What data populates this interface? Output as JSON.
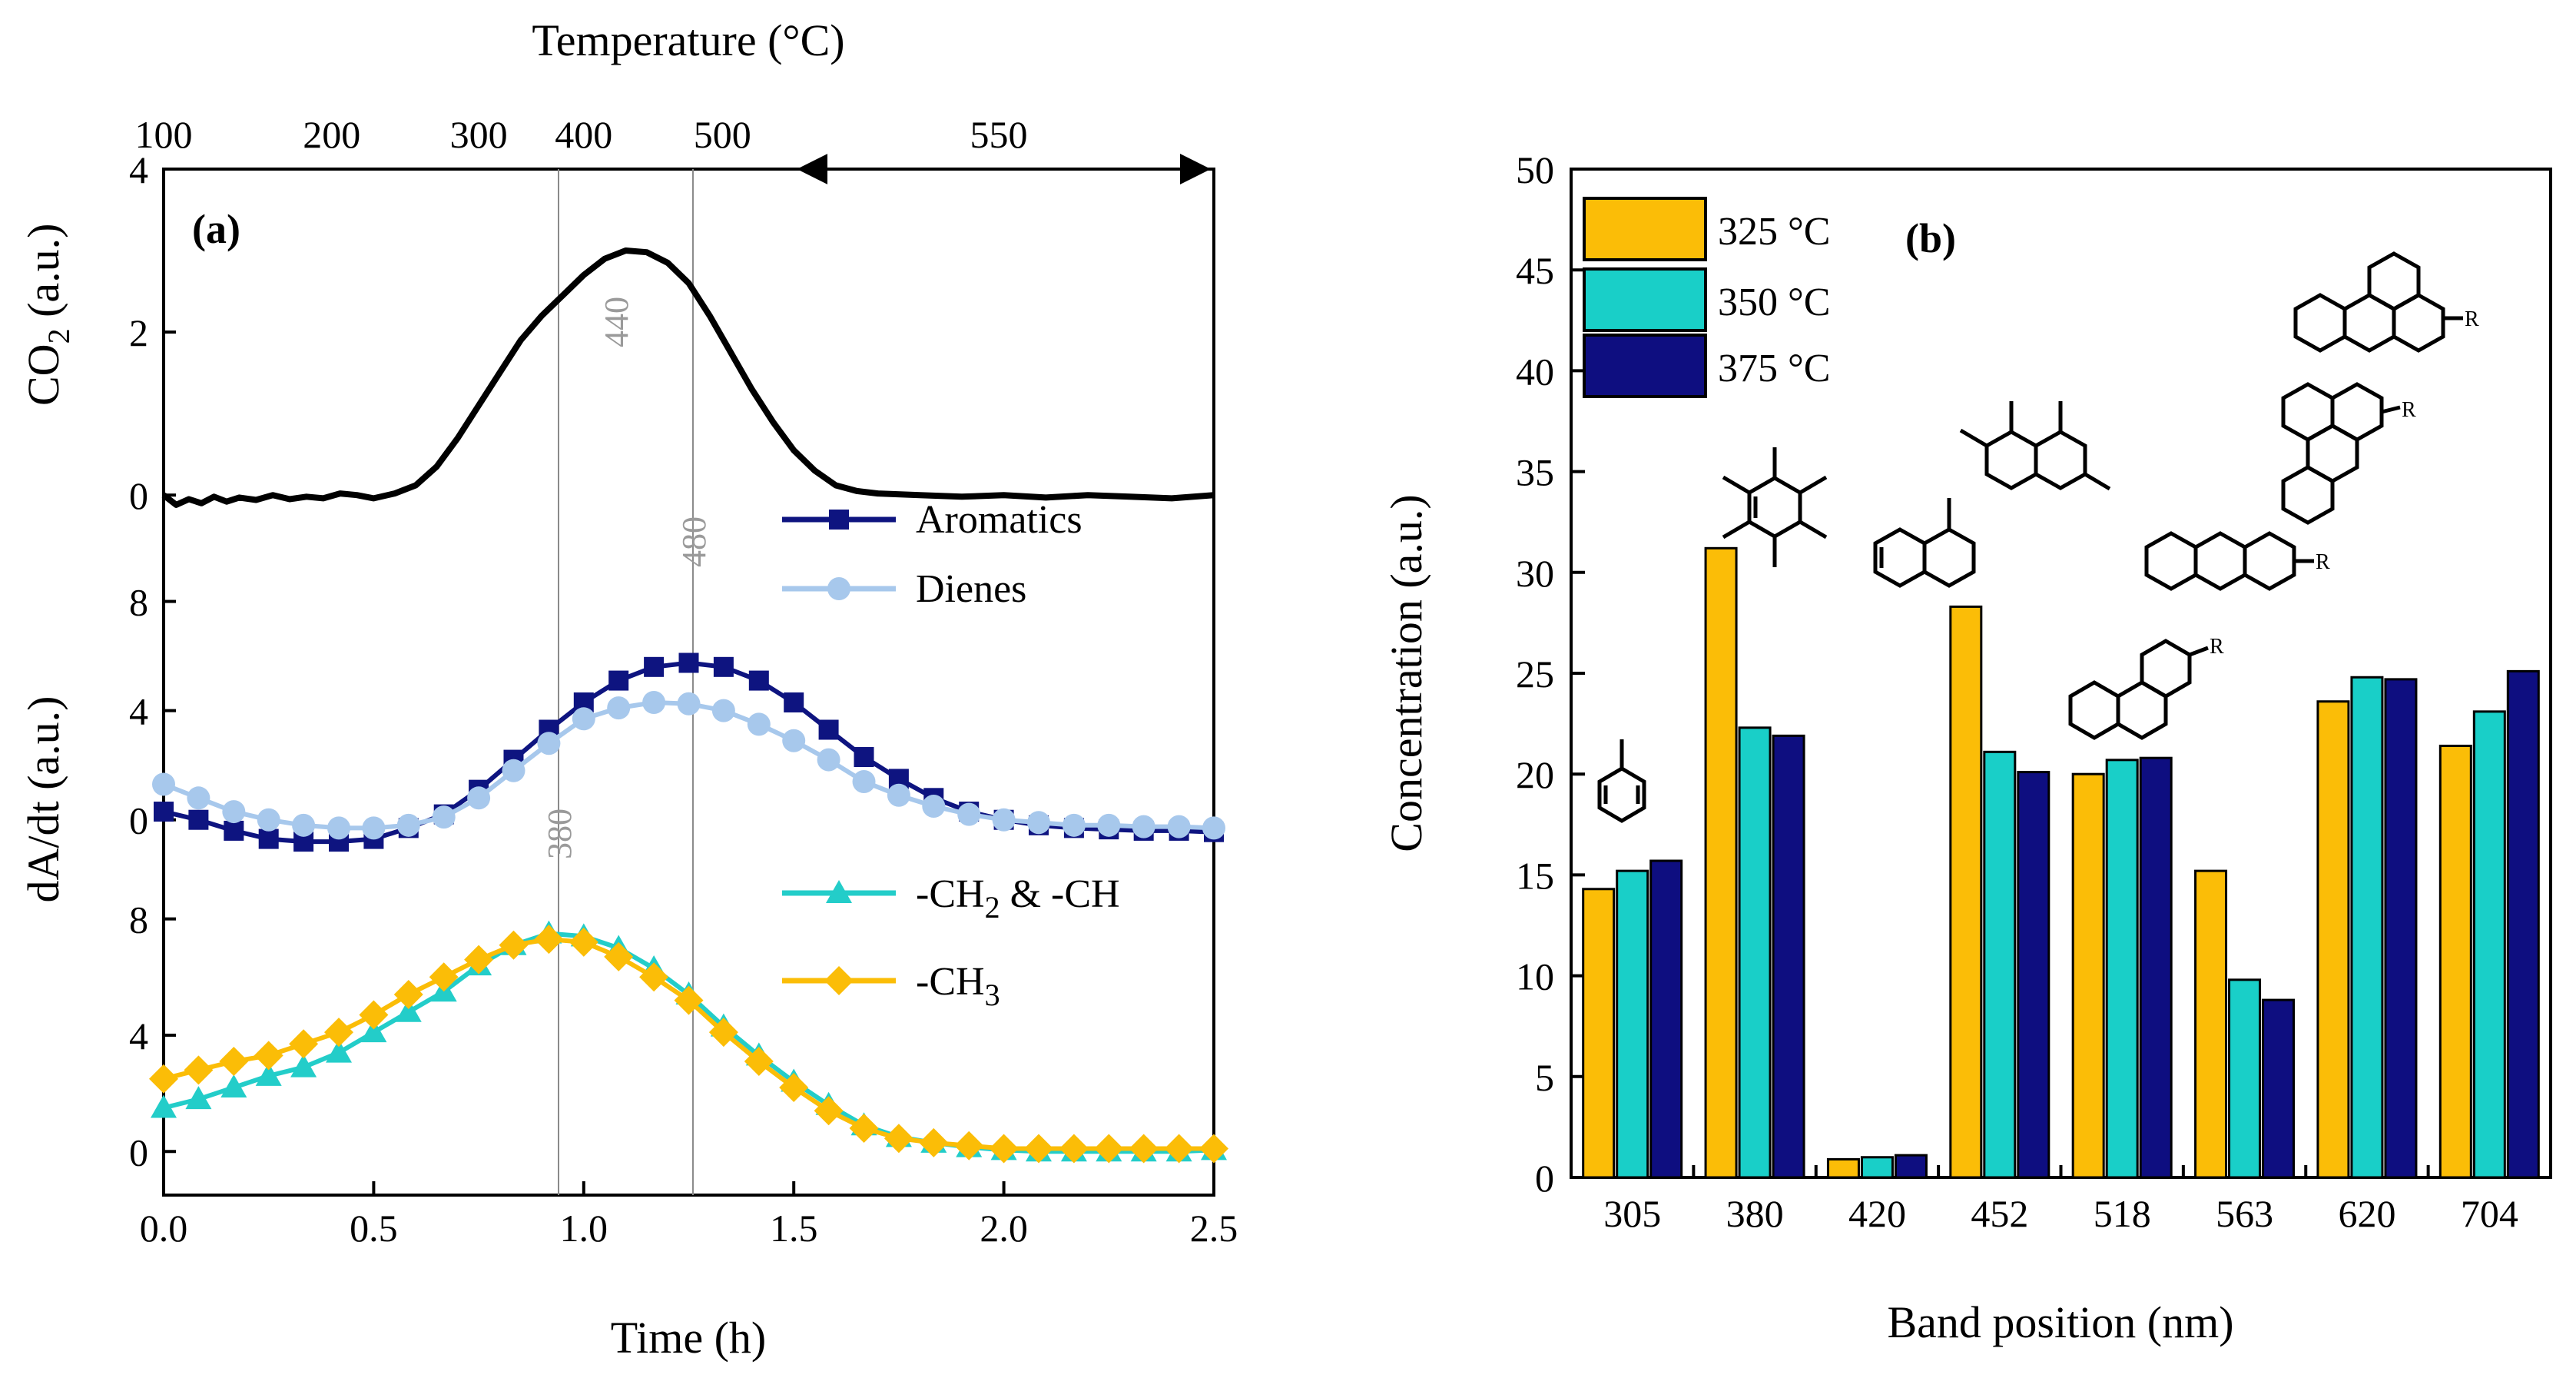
{
  "chart_data": [
    {
      "type": "line",
      "panel_label": "(a)",
      "xlabel": "Time (h)",
      "x_ticks": [
        "0.0",
        "0.5",
        "1.0",
        "1.5",
        "2.0",
        "2.5"
      ],
      "xlim": [
        0,
        2.5
      ],
      "top_axis": {
        "label": "Temperature  (°C)",
        "ticks": [
          "100",
          "200",
          "300",
          "400",
          "500"
        ],
        "ticks_at_time": [
          0.0,
          0.4,
          0.75,
          1.0,
          1.33
        ],
        "hold_label": "550",
        "hold_range_time": [
          1.5,
          2.5
        ]
      },
      "markers": [
        {
          "time": 0.94,
          "label": "380"
        },
        {
          "time": 1.26,
          "label": "480"
        }
      ],
      "peak_labels": [
        {
          "label": "440",
          "subplot": "co2"
        }
      ],
      "subplots": [
        {
          "id": "co2",
          "ylabel_main": "CO",
          "ylabel_sub": "2",
          "ylabel_tail": " (a.u.)",
          "y_ticks": [
            "0",
            "2",
            "4"
          ],
          "ylim": [
            -0.3,
            4
          ],
          "series": [
            {
              "name": "CO2",
              "color": "#000000",
              "marker": "none",
              "x": [
                0.0,
                0.03,
                0.06,
                0.09,
                0.12,
                0.15,
                0.18,
                0.22,
                0.26,
                0.3,
                0.34,
                0.38,
                0.42,
                0.46,
                0.5,
                0.55,
                0.6,
                0.65,
                0.7,
                0.75,
                0.8,
                0.85,
                0.9,
                0.95,
                1.0,
                1.05,
                1.1,
                1.15,
                1.2,
                1.25,
                1.3,
                1.35,
                1.4,
                1.45,
                1.5,
                1.55,
                1.6,
                1.65,
                1.7,
                1.8,
                1.9,
                2.0,
                2.1,
                2.2,
                2.3,
                2.4,
                2.5
              ],
              "y": [
                0.0,
                -0.12,
                -0.05,
                -0.1,
                -0.02,
                -0.08,
                -0.03,
                -0.06,
                0.0,
                -0.05,
                -0.02,
                -0.04,
                0.02,
                0.0,
                -0.04,
                0.02,
                0.12,
                0.35,
                0.7,
                1.1,
                1.5,
                1.9,
                2.2,
                2.45,
                2.7,
                2.9,
                3.0,
                2.98,
                2.85,
                2.6,
                2.2,
                1.75,
                1.3,
                0.9,
                0.55,
                0.3,
                0.12,
                0.05,
                0.02,
                0.0,
                -0.02,
                0.0,
                -0.03,
                0.0,
                -0.02,
                -0.04,
                0.0
              ]
            }
          ]
        },
        {
          "id": "aro",
          "y_ticks": [
            "0",
            "4",
            "8"
          ],
          "ylim": [
            -1.5,
            11
          ],
          "series": [
            {
              "name": "Aromatics",
              "color": "#0e1480",
              "marker": "square",
              "x": [
                0.0,
                0.083,
                0.167,
                0.25,
                0.333,
                0.417,
                0.5,
                0.583,
                0.667,
                0.75,
                0.833,
                0.917,
                1.0,
                1.083,
                1.167,
                1.25,
                1.333,
                1.417,
                1.5,
                1.583,
                1.667,
                1.75,
                1.833,
                1.917,
                2.0,
                2.083,
                2.167,
                2.25,
                2.333,
                2.417,
                2.5
              ],
              "y": [
                0.3,
                0.0,
                -0.4,
                -0.7,
                -0.8,
                -0.8,
                -0.7,
                -0.3,
                0.2,
                1.1,
                2.2,
                3.3,
                4.3,
                5.1,
                5.6,
                5.75,
                5.6,
                5.1,
                4.3,
                3.3,
                2.3,
                1.5,
                0.8,
                0.3,
                0.0,
                -0.2,
                -0.3,
                -0.35,
                -0.4,
                -0.4,
                -0.45
              ]
            },
            {
              "name": "Dienes",
              "color": "#a7c8ec",
              "marker": "circle",
              "x": [
                0.0,
                0.083,
                0.167,
                0.25,
                0.333,
                0.417,
                0.5,
                0.583,
                0.667,
                0.75,
                0.833,
                0.917,
                1.0,
                1.083,
                1.167,
                1.25,
                1.333,
                1.417,
                1.5,
                1.583,
                1.667,
                1.75,
                1.833,
                1.917,
                2.0,
                2.083,
                2.167,
                2.25,
                2.333,
                2.417,
                2.5
              ],
              "y": [
                1.3,
                0.8,
                0.3,
                0.0,
                -0.2,
                -0.3,
                -0.3,
                -0.2,
                0.1,
                0.8,
                1.8,
                2.8,
                3.7,
                4.1,
                4.3,
                4.25,
                4.0,
                3.5,
                2.9,
                2.2,
                1.4,
                0.9,
                0.5,
                0.2,
                0.0,
                -0.1,
                -0.2,
                -0.2,
                -0.25,
                -0.25,
                -0.3
              ]
            }
          ]
        },
        {
          "id": "ch",
          "y_ticks": [
            "0",
            "4",
            "8"
          ],
          "ylim": [
            -1.5,
            10
          ],
          "series": [
            {
              "name_main": "-CH",
              "name_sub": "2",
              "name_tail": " & -CH",
              "color": "#23cdc9",
              "marker": "triangle",
              "x": [
                0.0,
                0.083,
                0.167,
                0.25,
                0.333,
                0.417,
                0.5,
                0.583,
                0.667,
                0.75,
                0.833,
                0.917,
                1.0,
                1.083,
                1.167,
                1.25,
                1.333,
                1.417,
                1.5,
                1.583,
                1.667,
                1.75,
                1.833,
                1.917,
                2.0,
                2.083,
                2.167,
                2.25,
                2.333,
                2.417,
                2.5
              ],
              "y": [
                1.5,
                1.8,
                2.2,
                2.6,
                2.9,
                3.4,
                4.1,
                4.8,
                5.5,
                6.4,
                7.1,
                7.5,
                7.4,
                7.0,
                6.3,
                5.4,
                4.3,
                3.3,
                2.4,
                1.6,
                0.9,
                0.5,
                0.3,
                0.15,
                0.05,
                0.0,
                0.0,
                0.0,
                0.0,
                0.0,
                0.05
              ]
            },
            {
              "name_main": "-CH",
              "name_sub": "3",
              "name_tail": "",
              "color": "#fbbd07",
              "marker": "diamond",
              "x": [
                0.0,
                0.083,
                0.167,
                0.25,
                0.333,
                0.417,
                0.5,
                0.583,
                0.667,
                0.75,
                0.833,
                0.917,
                1.0,
                1.083,
                1.167,
                1.25,
                1.333,
                1.417,
                1.5,
                1.583,
                1.667,
                1.75,
                1.833,
                1.917,
                2.0,
                2.083,
                2.167,
                2.25,
                2.333,
                2.417,
                2.5
              ],
              "y": [
                2.5,
                2.8,
                3.1,
                3.3,
                3.7,
                4.1,
                4.7,
                5.4,
                6.0,
                6.6,
                7.1,
                7.3,
                7.2,
                6.7,
                6.0,
                5.2,
                4.1,
                3.1,
                2.2,
                1.4,
                0.8,
                0.45,
                0.3,
                0.2,
                0.1,
                0.1,
                0.1,
                0.1,
                0.1,
                0.1,
                0.1
              ]
            }
          ]
        }
      ],
      "shared_ylabel": "dA/dt (a.u.)"
    },
    {
      "type": "bar",
      "panel_label": "(b)",
      "xlabel": "Band position (nm)",
      "ylabel": "Concentration (a.u.)",
      "ylim": [
        0,
        50
      ],
      "y_ticks": [
        "0",
        "5",
        "10",
        "15",
        "20",
        "25",
        "30",
        "35",
        "40",
        "45",
        "50"
      ],
      "categories": [
        "305",
        "380",
        "420",
        "452",
        "518",
        "563",
        "620",
        "704"
      ],
      "series": [
        {
          "name": "325 °C",
          "color": "#fbbd07",
          "values": [
            14.3,
            31.2,
            0.9,
            28.3,
            20.0,
            15.2,
            23.6,
            21.4
          ]
        },
        {
          "name": "350 °C",
          "color": "#19cfc8",
          "values": [
            15.2,
            22.3,
            1.0,
            21.1,
            20.7,
            9.8,
            24.8,
            23.1
          ]
        },
        {
          "name": "375 °C",
          "color": "#0e0e80",
          "values": [
            15.7,
            21.9,
            1.1,
            20.1,
            20.8,
            8.8,
            24.7,
            25.1
          ]
        }
      ],
      "structure_label": "R"
    }
  ]
}
